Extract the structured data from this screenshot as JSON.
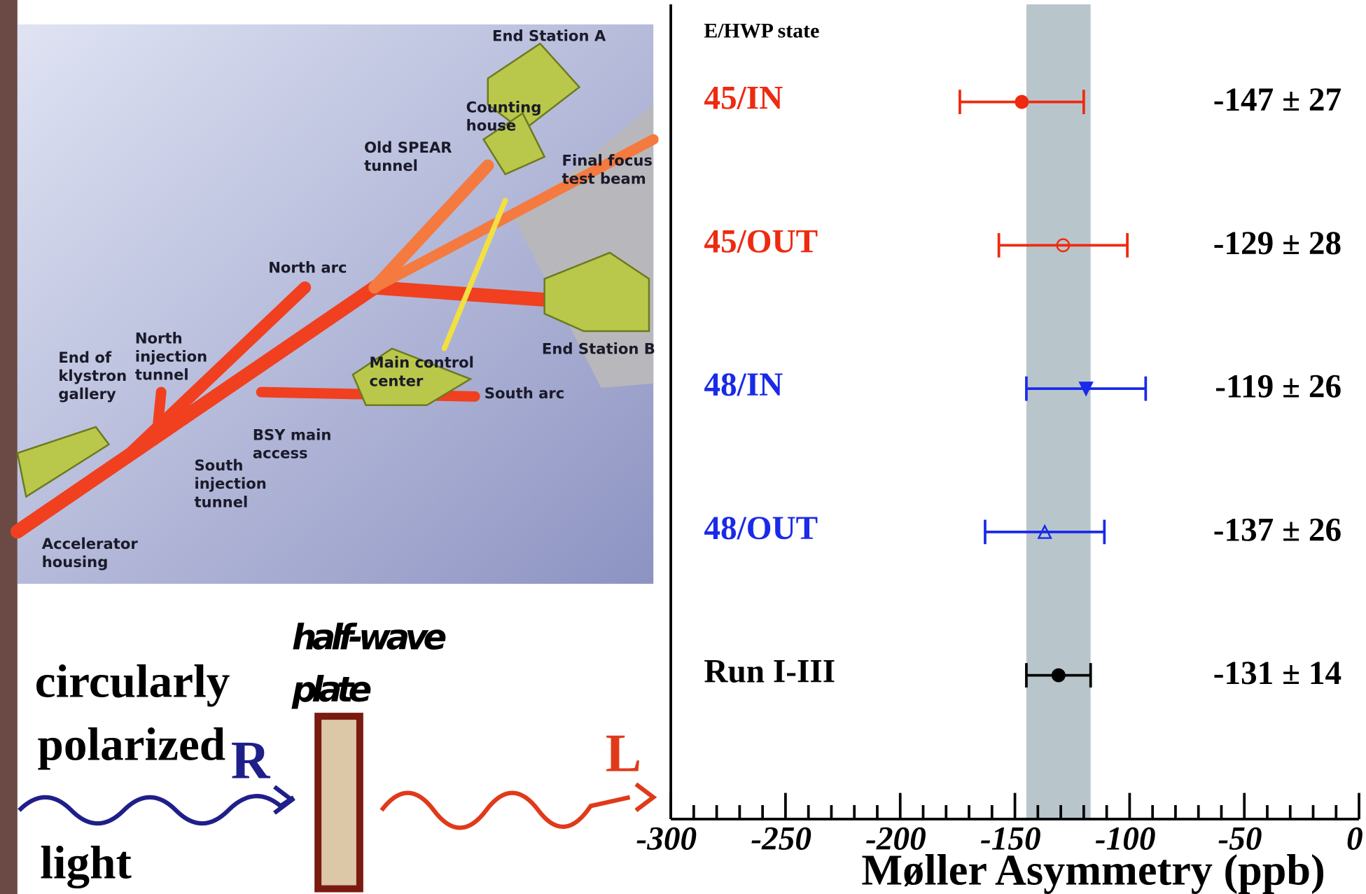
{
  "chart_data": {
    "type": "errorbar",
    "header": "E/HWP state",
    "xlabel": "Møller Asymmetry (ppb)",
    "categories": [
      "45/IN",
      "45/OUT",
      "48/IN",
      "48/OUT",
      "Run I-III"
    ],
    "values": [
      -147,
      -129,
      -119,
      -137,
      -131
    ],
    "errors": [
      27,
      28,
      26,
      26,
      14
    ],
    "value_labels": [
      "-147 ± 27",
      "-129 ± 28",
      "-119 ± 26",
      "-137 ± 26",
      "-131 ± 14"
    ],
    "colors": [
      "#ee2a10",
      "#ee2a10",
      "#1a2ae8",
      "#1a2ae8",
      "#000000"
    ],
    "markers": [
      "circle",
      "open-circle",
      "down-triangle",
      "open-triangle",
      "circle"
    ],
    "band": [
      -145,
      -117
    ],
    "band_color": "#b8c6cc",
    "xlim": [
      -300,
      0
    ],
    "xticks": [
      -300,
      -250,
      -200,
      -150,
      -100,
      -50,
      0
    ],
    "xminorticks": [
      -290,
      -280,
      -270,
      -260,
      -240,
      -230,
      -220,
      -210,
      -190,
      -180,
      -170,
      -160,
      -140,
      -130,
      -120,
      -110,
      -90,
      -80,
      -70,
      -60,
      -40,
      -30,
      -20,
      -10
    ]
  },
  "diagram": {
    "labels": [
      [
        "End Station A"
      ],
      [
        "Counting",
        "house"
      ],
      [
        "Old SPEAR",
        "tunnel"
      ],
      [
        "Final focus",
        "test beam"
      ],
      [
        "North arc"
      ],
      [
        "End Station B"
      ],
      [
        "North",
        "injection",
        "tunnel"
      ],
      [
        "End of",
        "klystron",
        "gallery"
      ],
      [
        "Main control",
        "center"
      ],
      [
        "South arc"
      ],
      [
        "BSY main",
        "access"
      ],
      [
        "South",
        "injection",
        "tunnel"
      ],
      [
        "Accelerator",
        "housing"
      ]
    ]
  },
  "polarization": {
    "plate_label": [
      "half-wave",
      "plate"
    ],
    "light_label": [
      "circularly",
      "polarized",
      "light"
    ],
    "incoming": "R",
    "outgoing": "L"
  }
}
